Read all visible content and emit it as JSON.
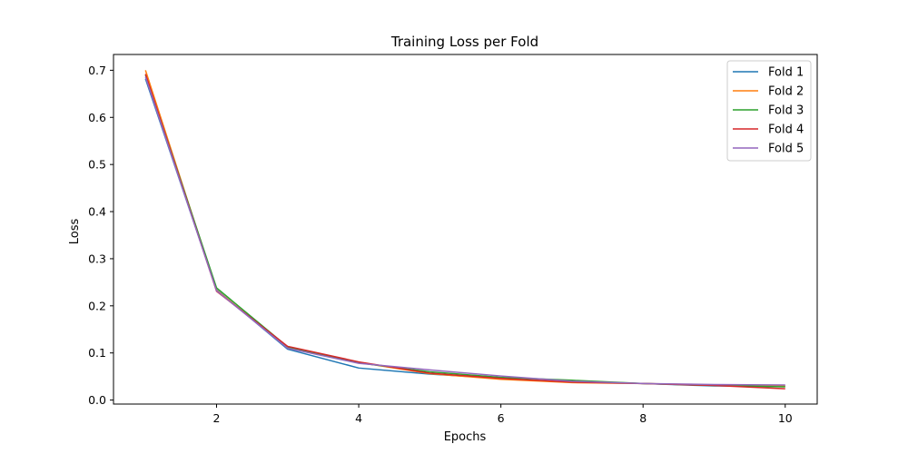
{
  "chart_data": {
    "type": "line",
    "title": "Training Loss per Fold",
    "xlabel": "Epochs",
    "ylabel": "Loss",
    "xlim": [
      0.55,
      10.45
    ],
    "ylim": [
      -0.0085,
      0.7335
    ],
    "xticks": [
      2,
      4,
      6,
      8,
      10
    ],
    "yticks": [
      0.0,
      0.1,
      0.2,
      0.3,
      0.4,
      0.5,
      0.6,
      0.7
    ],
    "ytick_labels": [
      "0.0",
      "0.1",
      "0.2",
      "0.3",
      "0.4",
      "0.5",
      "0.6",
      "0.7"
    ],
    "grid": false,
    "legend_position": "top-right",
    "x": [
      1,
      2,
      3,
      4,
      5,
      6,
      7,
      8,
      9,
      10
    ],
    "series": [
      {
        "name": "Fold 1",
        "color": "#1f77b4",
        "values": [
          0.682,
          0.234,
          0.108,
          0.068,
          0.055,
          0.046,
          0.038,
          0.035,
          0.03,
          0.029
        ]
      },
      {
        "name": "Fold 2",
        "color": "#ff7f0e",
        "values": [
          0.7,
          0.233,
          0.111,
          0.08,
          0.056,
          0.044,
          0.037,
          0.035,
          0.032,
          0.03
        ]
      },
      {
        "name": "Fold 3",
        "color": "#2ca02c",
        "values": [
          0.69,
          0.238,
          0.113,
          0.079,
          0.06,
          0.048,
          0.042,
          0.035,
          0.031,
          0.028
        ]
      },
      {
        "name": "Fold 4",
        "color": "#d62728",
        "values": [
          0.692,
          0.231,
          0.114,
          0.081,
          0.057,
          0.046,
          0.038,
          0.035,
          0.031,
          0.024
        ]
      },
      {
        "name": "Fold 5",
        "color": "#9467bd",
        "values": [
          0.686,
          0.232,
          0.11,
          0.078,
          0.064,
          0.051,
          0.04,
          0.035,
          0.033,
          0.032
        ]
      }
    ]
  }
}
